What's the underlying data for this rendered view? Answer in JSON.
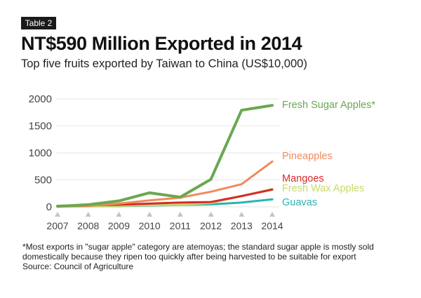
{
  "header": {
    "tag": "Table 2",
    "title": "NT$590 Million Exported in 2014",
    "subtitle": "Top five fruits exported by Taiwan to China (US$10,000)"
  },
  "footnote": {
    "note": "*Most exports in \"sugar apple\" category are atemoyas; the standard sugar apple is mostly sold domestically because they ripen too quickly after being harvested to be suitable for export",
    "source": "Source: Council of Agriculture"
  },
  "chart_data": {
    "type": "line",
    "x": [
      "2007",
      "2008",
      "2009",
      "2010",
      "2011",
      "2012",
      "2013",
      "2014"
    ],
    "ylim": [
      0,
      2000
    ],
    "yticks": [
      0,
      500,
      1000,
      1500,
      2000
    ],
    "grid": true,
    "legend": "end-of-line labels",
    "series": [
      {
        "name": "Fresh Sugar Apples*",
        "color": "#6aa84f",
        "values": [
          10,
          40,
          110,
          260,
          180,
          510,
          1790,
          1880
        ]
      },
      {
        "name": "Pineapples",
        "color": "#f08a5d",
        "values": [
          5,
          20,
          60,
          120,
          170,
          280,
          420,
          840
        ]
      },
      {
        "name": "Mangoes",
        "color": "#d62a2a",
        "values": [
          20,
          30,
          40,
          60,
          80,
          90,
          200,
          320
        ]
      },
      {
        "name": "Fresh Wax Apples",
        "color": "#c8d86a",
        "values": [
          5,
          10,
          20,
          30,
          40,
          70,
          200,
          330
        ]
      },
      {
        "name": "Guavas",
        "color": "#2bb3b1",
        "values": [
          5,
          10,
          15,
          25,
          35,
          45,
          80,
          140
        ]
      }
    ]
  }
}
